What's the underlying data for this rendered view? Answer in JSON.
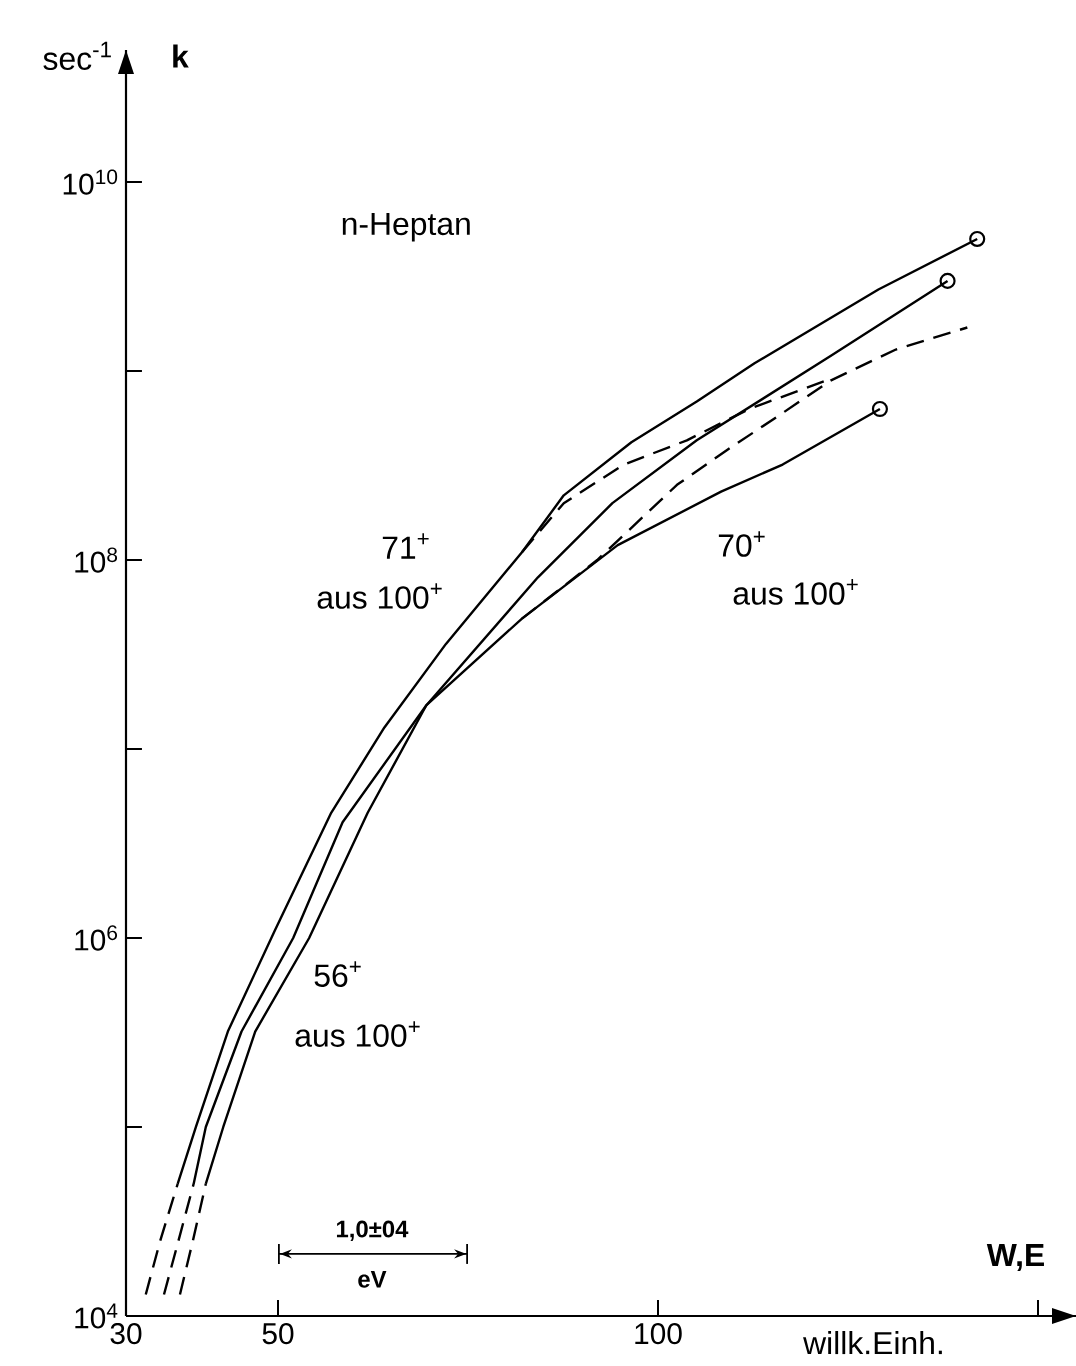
{
  "chart_data": {
    "type": "line",
    "title": "n-Heptan",
    "xlabel": "W,E",
    "ylabel": "sec$^{-1}$",
    "log": "y",
    "xlim": [
      30,
      155
    ],
    "ylim": [
      10000,
      50000000000
    ],
    "xticks": [
      30,
      50,
      100,
      {
        "value": 150,
        "label": null
      }
    ],
    "yticks": [
      {
        "value": 10000,
        "label": "10$^{4}$"
      },
      {
        "value": 100000,
        "label": null
      },
      {
        "value": 1000000,
        "label": "10$^{6}$"
      },
      {
        "value": 10000000,
        "label": null
      },
      {
        "value": 100000000,
        "label": "10$^{8}$"
      },
      {
        "value": 1000000000,
        "label": null
      },
      {
        "value": 10000000000,
        "label": "10$^{10}$"
      }
    ],
    "series": [
      {
        "color": "#000000",
        "line_style": "dashed",
        "x": [
          32.6,
          34.5,
          36.8
        ],
        "values": [
          13000.0,
          25000.0,
          50000.0
        ]
      },
      {
        "color": "#000000",
        "line_style": "solid",
        "x": [
          36.8,
          39.2,
          43.4,
          49.6,
          57.0,
          64.0,
          72.1,
          82.1,
          87.6,
          96.5,
          105.1,
          112.7,
          129.0,
          142.0
        ],
        "values": [
          50000.0,
          100000.0,
          320000.0,
          1100000.0,
          4600000.0,
          13000000.0,
          36000000.0,
          110000000.0,
          220000000.0,
          420000000.0,
          690000000.0,
          1100000000.0,
          2700000000.0,
          5000000000.0
        ]
      },
      {
        "color": "#000000",
        "line_style": "dashed",
        "x": [
          37.1,
          38.8,
          40.5
        ],
        "values": [
          13000.0,
          25000.0,
          50000.0
        ]
      },
      {
        "color": "#000000",
        "line_style": "solid",
        "x": [
          40.5,
          42.8,
          47.0,
          54.1,
          61.8,
          69.5,
          84.2,
          94.0,
          105.1,
          122.7,
          138.1
        ],
        "values": [
          50000.0,
          100000.0,
          320000.0,
          1000000.0,
          4600000.0,
          17000000.0,
          81000000.0,
          200000000.0,
          430000000.0,
          1200000000.0,
          3000000000.0
        ]
      },
      {
        "color": "#000000",
        "line_style": "dashed",
        "x": [
          35.0,
          36.9,
          38.9
        ],
        "values": [
          13000.0,
          25000.0,
          50000.0
        ]
      },
      {
        "color": "#000000",
        "line_style": "solid",
        "x": [
          38.9,
          40.5,
          45.2,
          52.0,
          58.5,
          69.5,
          82.1,
          94.7,
          108.3,
          116.4,
          129.2
        ],
        "values": [
          50000.0,
          100000.0,
          320000.0,
          1000000.0,
          4100000.0,
          17000000.0,
          49000000.0,
          120000000.0,
          230000000.0,
          320000000.0,
          630000000.0
        ]
      },
      {
        "color": "#000000",
        "line_style": "dashed",
        "x": [
          82.1,
          87.6,
          95.5,
          103.8,
          112.0,
          122.7
        ],
        "values": [
          110000000.0,
          200000000.0,
          320000000.0,
          430000000.0,
          630000000.0,
          910000000.0
        ]
      },
      {
        "color": "#000000",
        "line_style": "dashed",
        "x": [
          82.1,
          92.0,
          102.5,
          109.0,
          116.4,
          122.7,
          131.3,
          140.7
        ],
        "values": [
          49000000.0,
          100000000.0,
          250000000.0,
          380000000.0,
          600000000.0,
          890000000.0,
          1300000000.0,
          1700000000.0
        ]
      },
      {
        "type": "scatter",
        "marker": "circle",
        "color": "#000000",
        "x": [
          142.0,
          138.1,
          129.2
        ],
        "values": [
          5000000000.0,
          3000000000.0,
          630000000.0
        ]
      }
    ],
    "annotations": [
      "k",
      "willk.Einh.",
      "71$^{+}$",
      "aus 100$^{+}$",
      "70$^{+}$",
      "aus 100$^{+}$",
      "56$^{+}$",
      "aus 100$^{+}$",
      "1,0±04",
      "eV"
    ]
  }
}
